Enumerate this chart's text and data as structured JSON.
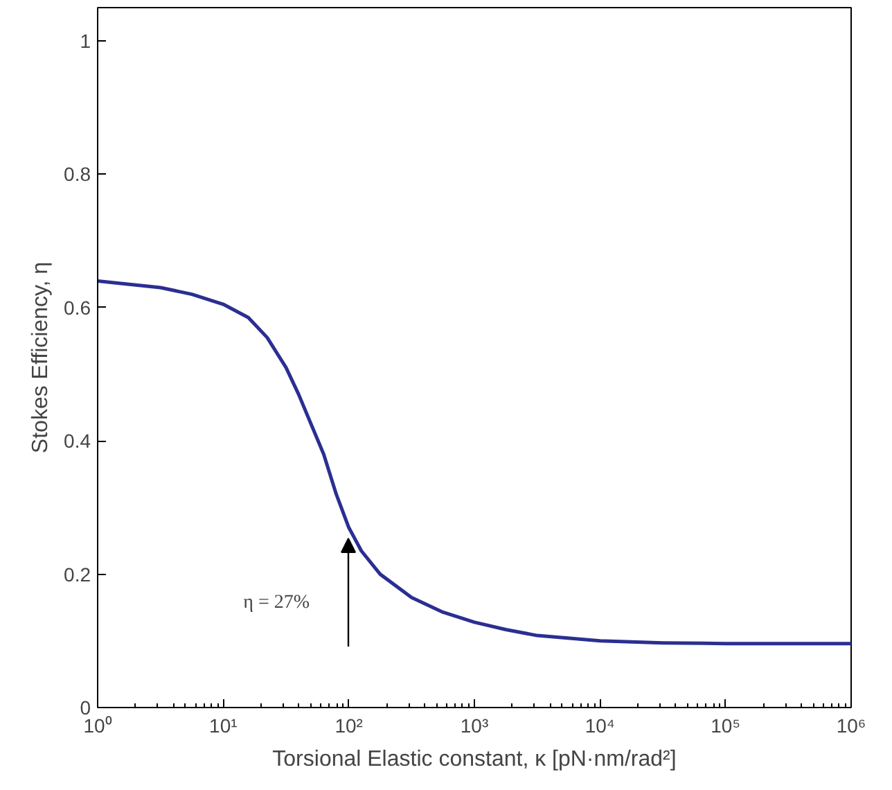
{
  "chart_data": {
    "type": "line",
    "xlabel": "Torsional Elastic constant, κ [pN·nm/rad²]",
    "ylabel": "Stokes Efficiency, η",
    "log": "x",
    "grid": false,
    "line_style": "solid",
    "xlim": [
      1,
      1000000
    ],
    "ylim": [
      0,
      1.05
    ],
    "xticks": [
      {
        "value": 1,
        "label": "10⁰"
      },
      {
        "value": 10,
        "label": "10¹"
      },
      {
        "value": 100,
        "label": "10²"
      },
      {
        "value": 1000,
        "label": "10³"
      },
      {
        "value": 10000,
        "label": "10⁴"
      },
      {
        "value": 100000,
        "label": "10⁵"
      },
      {
        "value": 1000000,
        "label": "10⁶"
      }
    ],
    "yticks": [
      0,
      0.2,
      0.4,
      0.6,
      0.8,
      1
    ],
    "x": [
      1,
      1.778,
      3.162,
      5.623,
      10,
      15.85,
      22.39,
      31.62,
      39.81,
      50.12,
      63.1,
      79.43,
      100,
      125.9,
      177.8,
      316.2,
      562.3,
      1000,
      1778,
      3162,
      10000,
      31623,
      100000,
      1000000
    ],
    "series": [
      {
        "color": "#2b2f91",
        "values": [
          0.64,
          0.635,
          0.63,
          0.62,
          0.605,
          0.585,
          0.555,
          0.51,
          0.47,
          0.425,
          0.38,
          0.32,
          0.27,
          0.235,
          0.2,
          0.165,
          0.143,
          0.128,
          0.117,
          0.108,
          0.1,
          0.097,
          0.096,
          0.096
        ]
      }
    ],
    "annotations": [
      "η = 27%"
    ]
  }
}
